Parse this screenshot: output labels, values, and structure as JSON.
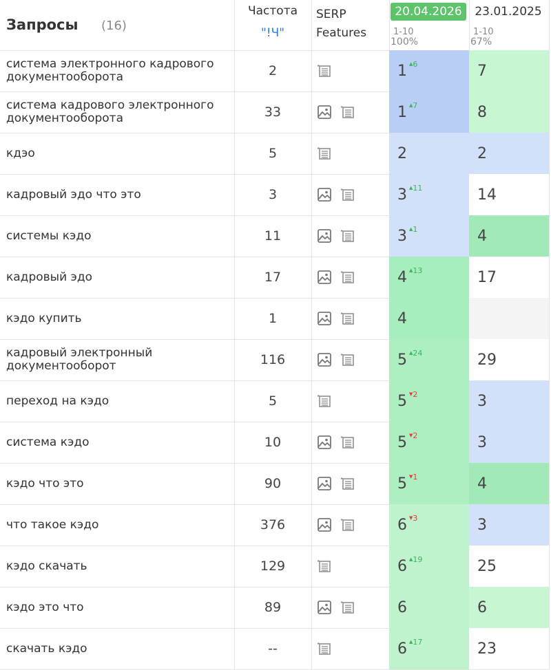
{
  "header": {
    "queries": "Запросы",
    "count": "(16)",
    "frequency": "Частота",
    "frequency_type": "\"!Ч\"",
    "serp": "SERP",
    "features": "Features",
    "dates": [
      {
        "date": "20.04.2026",
        "range": "1-10",
        "percent": "100%",
        "highlight": "#5dc46b"
      },
      {
        "date": "23.01.2025",
        "range": "1-10",
        "percent": "67%"
      }
    ]
  },
  "rows": [
    {
      "query": "система электронного кадрового документооборота",
      "frequency": 2,
      "serp": [
        "list"
      ],
      "positions": [
        {
          "value": 1,
          "change": 6,
          "direction": "up",
          "color": "#b8cef6"
        },
        {
          "value": 7,
          "color": "#c8f5d4"
        }
      ]
    },
    {
      "query": "система кадрового электронного документооборота",
      "frequency": 33,
      "serp": [
        "image",
        "list"
      ],
      "positions": [
        {
          "value": 1,
          "change": 7,
          "direction": "up",
          "color": "#b8cef6"
        },
        {
          "value": 8,
          "color": "#c8f5d4"
        }
      ]
    },
    {
      "query": "кдэо",
      "frequency": 5,
      "serp": [
        "list"
      ],
      "positions": [
        {
          "value": 2,
          "color": "#d3e0fa"
        },
        {
          "value": 2,
          "color": "#d3e0fa"
        }
      ]
    },
    {
      "query": "кадровый эдо что это",
      "frequency": 3,
      "serp": [
        "image",
        "list"
      ],
      "positions": [
        {
          "value": 3,
          "change": 11,
          "direction": "up",
          "color": "#d3e0fa"
        },
        {
          "value": 14,
          "color": "#ffffff"
        }
      ]
    },
    {
      "query": "системы кэдо",
      "frequency": 11,
      "serp": [
        "image",
        "list"
      ],
      "positions": [
        {
          "value": 3,
          "change": 1,
          "direction": "up",
          "color": "#d3e0fa"
        },
        {
          "value": 4,
          "color": "#a3e9b7"
        }
      ]
    },
    {
      "query": "кадровый эдо",
      "frequency": 17,
      "serp": [
        "image",
        "list"
      ],
      "positions": [
        {
          "value": 4,
          "change": 13,
          "direction": "up",
          "color": "#a8edbd"
        },
        {
          "value": 17,
          "color": "#ffffff"
        }
      ]
    },
    {
      "query": "кэдо купить",
      "frequency": 1,
      "serp": [
        "image",
        "list"
      ],
      "positions": [
        {
          "value": 4,
          "color": "#a8edbd"
        },
        {
          "color": "#f4f4f4"
        }
      ]
    },
    {
      "query": "кадровый электронный документооборот",
      "frequency": 116,
      "serp": [
        "image",
        "list"
      ],
      "positions": [
        {
          "value": 5,
          "change": 24,
          "direction": "up",
          "color": "#aeefc1"
        },
        {
          "value": 29,
          "color": "#ffffff"
        }
      ]
    },
    {
      "query": "переход на кэдо",
      "frequency": 5,
      "serp": [
        "list"
      ],
      "positions": [
        {
          "value": 5,
          "change": 2,
          "direction": "down",
          "color": "#aeefc1"
        },
        {
          "value": 3,
          "color": "#d3e0fa"
        }
      ]
    },
    {
      "query": "система кэдо",
      "frequency": 10,
      "serp": [
        "image",
        "list"
      ],
      "positions": [
        {
          "value": 5,
          "change": 2,
          "direction": "down",
          "color": "#aeefc1"
        },
        {
          "value": 3,
          "color": "#d3e0fa"
        }
      ]
    },
    {
      "query": "кэдо что это",
      "frequency": 90,
      "serp": [
        "image",
        "list"
      ],
      "positions": [
        {
          "value": 5,
          "change": 1,
          "direction": "down",
          "color": "#aeefc1"
        },
        {
          "value": 4,
          "color": "#a3e9b7"
        }
      ]
    },
    {
      "query": "что такое кэдо",
      "frequency": 376,
      "serp": [
        "image",
        "list"
      ],
      "positions": [
        {
          "value": 6,
          "change": 3,
          "direction": "down",
          "color": "#bff3cd"
        },
        {
          "value": 3,
          "color": "#d3e0fa"
        }
      ]
    },
    {
      "query": "кэдо скачать",
      "frequency": 129,
      "serp": [
        "list"
      ],
      "positions": [
        {
          "value": 6,
          "change": 19,
          "direction": "up",
          "color": "#bff3cd"
        },
        {
          "value": 25,
          "color": "#ffffff"
        }
      ]
    },
    {
      "query": "кэдо это что",
      "frequency": 89,
      "serp": [
        "image",
        "list"
      ],
      "positions": [
        {
          "value": 6,
          "color": "#bff3cd"
        },
        {
          "value": 6,
          "color": "#c8f5d4"
        }
      ]
    },
    {
      "query": "скачать кэдо",
      "frequency": "--",
      "serp": [
        "list"
      ],
      "positions": [
        {
          "value": 6,
          "change": 17,
          "direction": "up",
          "color": "#bff3cd"
        },
        {
          "value": 23,
          "color": "#ffffff"
        }
      ]
    }
  ]
}
